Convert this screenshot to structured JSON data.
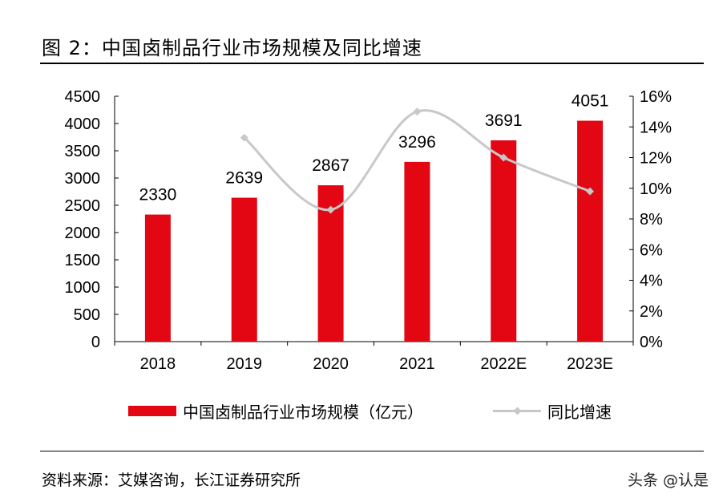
{
  "title": "图  2：中国卤制品行业市场规模及同比增速",
  "source": "资料来源：艾媒咨询，长江证券研究所",
  "watermark": "头条 @认是",
  "chart_data": {
    "type": "bar+line",
    "categories": [
      "2018",
      "2019",
      "2020",
      "2021",
      "2022E",
      "2023E"
    ],
    "series": [
      {
        "name": "中国卤制品行业市场规模（亿元）",
        "type": "bar",
        "axis": "left",
        "color": "#E30613",
        "values": [
          2330,
          2639,
          2867,
          3296,
          3691,
          4051
        ],
        "data_labels": [
          "2330",
          "2639",
          "2867",
          "3296",
          "3691",
          "4051"
        ]
      },
      {
        "name": "同比增速",
        "type": "line",
        "axis": "right",
        "color": "#C8C8C8",
        "values": [
          null,
          13.3,
          8.6,
          15.0,
          12.0,
          9.8
        ],
        "smooth": true
      }
    ],
    "left_axis": {
      "ylim": [
        0,
        4500
      ],
      "ticks": [
        "0",
        "500",
        "1000",
        "1500",
        "2000",
        "2500",
        "3000",
        "3500",
        "4000",
        "4500"
      ]
    },
    "right_axis": {
      "ylim": [
        0,
        16
      ],
      "ticks": [
        "0%",
        "2%",
        "4%",
        "6%",
        "8%",
        "10%",
        "12%",
        "14%",
        "16%"
      ]
    },
    "grid": false,
    "legend": "bottom"
  }
}
